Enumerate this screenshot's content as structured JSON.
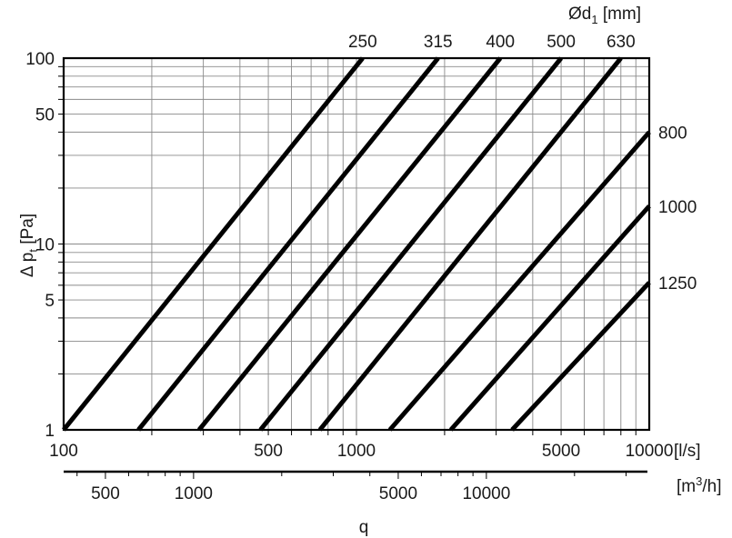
{
  "chart_data": {
    "type": "line",
    "x_scale": "log",
    "y_scale": "log",
    "xlim": [
      100,
      10000
    ],
    "ylim": [
      1,
      100
    ],
    "grid": true,
    "legend": "none",
    "ylabel": "Δ pt [Pa]",
    "xlabel": "q",
    "x_ticks": [
      100,
      500,
      1000,
      5000,
      10000
    ],
    "x_tick_labels": [
      "100",
      "500",
      "1000",
      "5000",
      "10000"
    ],
    "x_unit_label": "[l/s]",
    "y_ticks": [
      1,
      5,
      10,
      50,
      100
    ],
    "y_tick_labels": [
      "1",
      "5",
      "10",
      "50",
      "100"
    ],
    "secondary_x": {
      "unit_label": "[m3/h]",
      "ticks": [
        500,
        1000,
        5000,
        10000
      ],
      "tick_labels": [
        "500",
        "1000",
        "5000",
        "10000"
      ]
    },
    "series_label_title": "Ød1 [mm]",
    "series": [
      {
        "name": "250",
        "x": [
          100,
          1050
        ],
        "y": [
          1,
          100
        ]
      },
      {
        "name": "315",
        "x": [
          180,
          1900
        ],
        "y": [
          1,
          100
        ]
      },
      {
        "name": "400",
        "x": [
          290,
          3100
        ],
        "y": [
          1,
          100
        ]
      },
      {
        "name": "500",
        "x": [
          470,
          5000
        ],
        "y": [
          1,
          100
        ]
      },
      {
        "name": "630",
        "x": [
          750,
          8000
        ],
        "y": [
          1,
          100
        ]
      },
      {
        "name": "800",
        "x": [
          1300,
          10000
        ],
        "y": [
          1,
          40
        ]
      },
      {
        "name": "1000",
        "x": [
          2100,
          10000
        ],
        "y": [
          1,
          16
        ]
      },
      {
        "name": "1250",
        "x": [
          3400,
          10000
        ],
        "y": [
          1,
          6.2
        ]
      }
    ]
  },
  "labels": {
    "y_axis_main": "Δ p",
    "y_axis_sub": "t",
    "y_axis_unit": "[Pa]",
    "x_axis_title": "q",
    "d_label_main": "Ød",
    "d_label_sub": "1",
    "d_label_unit": "[mm]",
    "m3h_unit_pre": "[m",
    "m3h_unit_sup": "3",
    "m3h_unit_post": "/h]"
  }
}
